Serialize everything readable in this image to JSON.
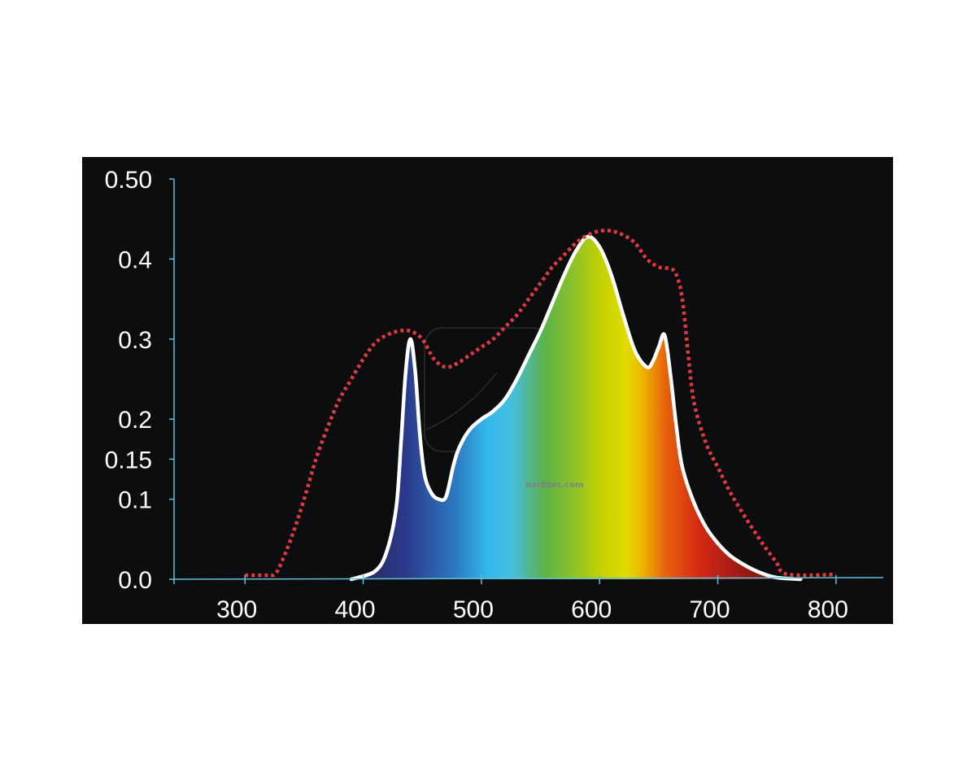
{
  "chart_data": {
    "type": "area",
    "xlim": [
      240,
      840
    ],
    "ylim": [
      0,
      0.5
    ],
    "x_ticks": [
      300,
      400,
      500,
      600,
      700,
      800
    ],
    "x_tick_labels": [
      "300",
      "400",
      "500",
      "600",
      "700",
      "800"
    ],
    "y_ticks": [
      0,
      0.1,
      0.15,
      0.2,
      0.3,
      0.4,
      0.5
    ],
    "y_tick_labels": [
      "0.0",
      "0.1",
      "0.15",
      "0.2",
      "0.3",
      "0.4",
      "0.50"
    ],
    "grid": false,
    "series": [
      {
        "style": "solid white line with spectral gradient fill",
        "color": "#ffffff",
        "x": [
          390,
          410,
          420,
          428,
          432,
          436,
          440,
          444,
          448,
          452,
          458,
          464,
          470,
          476,
          480,
          486,
          492,
          500,
          510,
          520,
          530,
          540,
          550,
          560,
          570,
          580,
          590,
          600,
          610,
          620,
          630,
          640,
          645,
          650,
          655,
          660,
          665,
          670,
          680,
          690,
          700,
          710,
          720,
          730,
          740,
          750,
          770
        ],
        "y": [
          0.0,
          0.01,
          0.035,
          0.09,
          0.17,
          0.26,
          0.3,
          0.26,
          0.18,
          0.13,
          0.107,
          0.1,
          0.103,
          0.14,
          0.16,
          0.178,
          0.19,
          0.2,
          0.21,
          0.225,
          0.25,
          0.28,
          0.31,
          0.345,
          0.38,
          0.41,
          0.428,
          0.415,
          0.38,
          0.33,
          0.285,
          0.265,
          0.272,
          0.29,
          0.305,
          0.255,
          0.19,
          0.14,
          0.095,
          0.065,
          0.045,
          0.03,
          0.02,
          0.012,
          0.006,
          0.002,
          0.0
        ]
      },
      {
        "style": "red dotted line",
        "color": "#e0393e",
        "x": [
          300,
          320,
          325,
          330,
          340,
          350,
          360,
          370,
          380,
          390,
          400,
          410,
          420,
          430,
          440,
          450,
          460,
          470,
          480,
          490,
          500,
          510,
          520,
          530,
          540,
          550,
          560,
          570,
          580,
          590,
          600,
          610,
          620,
          630,
          640,
          650,
          660,
          665,
          670,
          675,
          680,
          690,
          700,
          710,
          720,
          730,
          740,
          750,
          755,
          770,
          800
        ],
        "y": [
          0.005,
          0.005,
          0.006,
          0.018,
          0.055,
          0.1,
          0.15,
          0.19,
          0.225,
          0.25,
          0.275,
          0.295,
          0.305,
          0.31,
          0.31,
          0.3,
          0.275,
          0.265,
          0.27,
          0.28,
          0.29,
          0.3,
          0.315,
          0.33,
          0.35,
          0.37,
          0.39,
          0.405,
          0.42,
          0.43,
          0.435,
          0.435,
          0.43,
          0.42,
          0.4,
          0.39,
          0.388,
          0.38,
          0.35,
          0.28,
          0.22,
          0.17,
          0.14,
          0.11,
          0.085,
          0.062,
          0.04,
          0.02,
          0.008,
          0.005,
          0.006
        ]
      }
    ],
    "watermark_text": "hortitec.com",
    "colors": {
      "background": "#0c0d0f",
      "axis": "#5fc0d8",
      "text": "#ffffff"
    }
  }
}
